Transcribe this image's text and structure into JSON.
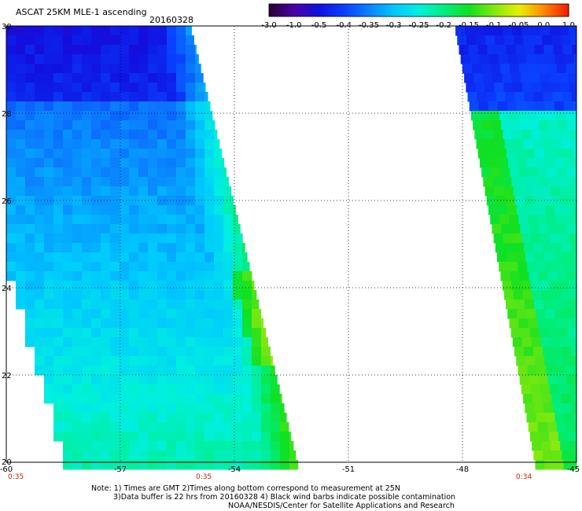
{
  "header": {
    "title": "ASCAT 25KM MLE-1 ascending",
    "date": "20160328"
  },
  "colorbar": {
    "labels": [
      "-3.0",
      "-1.0",
      "-0.5",
      "-0.4",
      "-0.35",
      "-0.3",
      "-0.25",
      "-0.2",
      "-0.15",
      "-0.1",
      "-0.05",
      "0.0",
      "1.0"
    ],
    "colors": [
      "#2a0030",
      "#4a00a8",
      "#1010e0",
      "#0a40ff",
      "#0a82ff",
      "#00c8ff",
      "#00f0e0",
      "#00ee80",
      "#10e020",
      "#80e810",
      "#e8f000",
      "#ff8800",
      "#f01800"
    ]
  },
  "map": {
    "lon_range": [
      -60,
      -45
    ],
    "lat_range": [
      20,
      30
    ],
    "lon_ticks": [
      "-60",
      "-57",
      "-54",
      "-51",
      "-48",
      "-45"
    ],
    "lat_ticks": [
      "30",
      "26",
      "28",
      "24",
      "22",
      "20"
    ],
    "time_labels": [
      "0:35",
      "0:35",
      "0:34"
    ]
  },
  "footer": {
    "line1": "Note: 1) Times are GMT 2)Times along bottom correspond to measurement at 25N",
    "line2": "3)Data buffer is 22 hrs from 20160328 4) Black wind barbs indicate possible contamination",
    "line3": "NOAA/NESDIS/Center for Satellite Applications and Research"
  }
}
